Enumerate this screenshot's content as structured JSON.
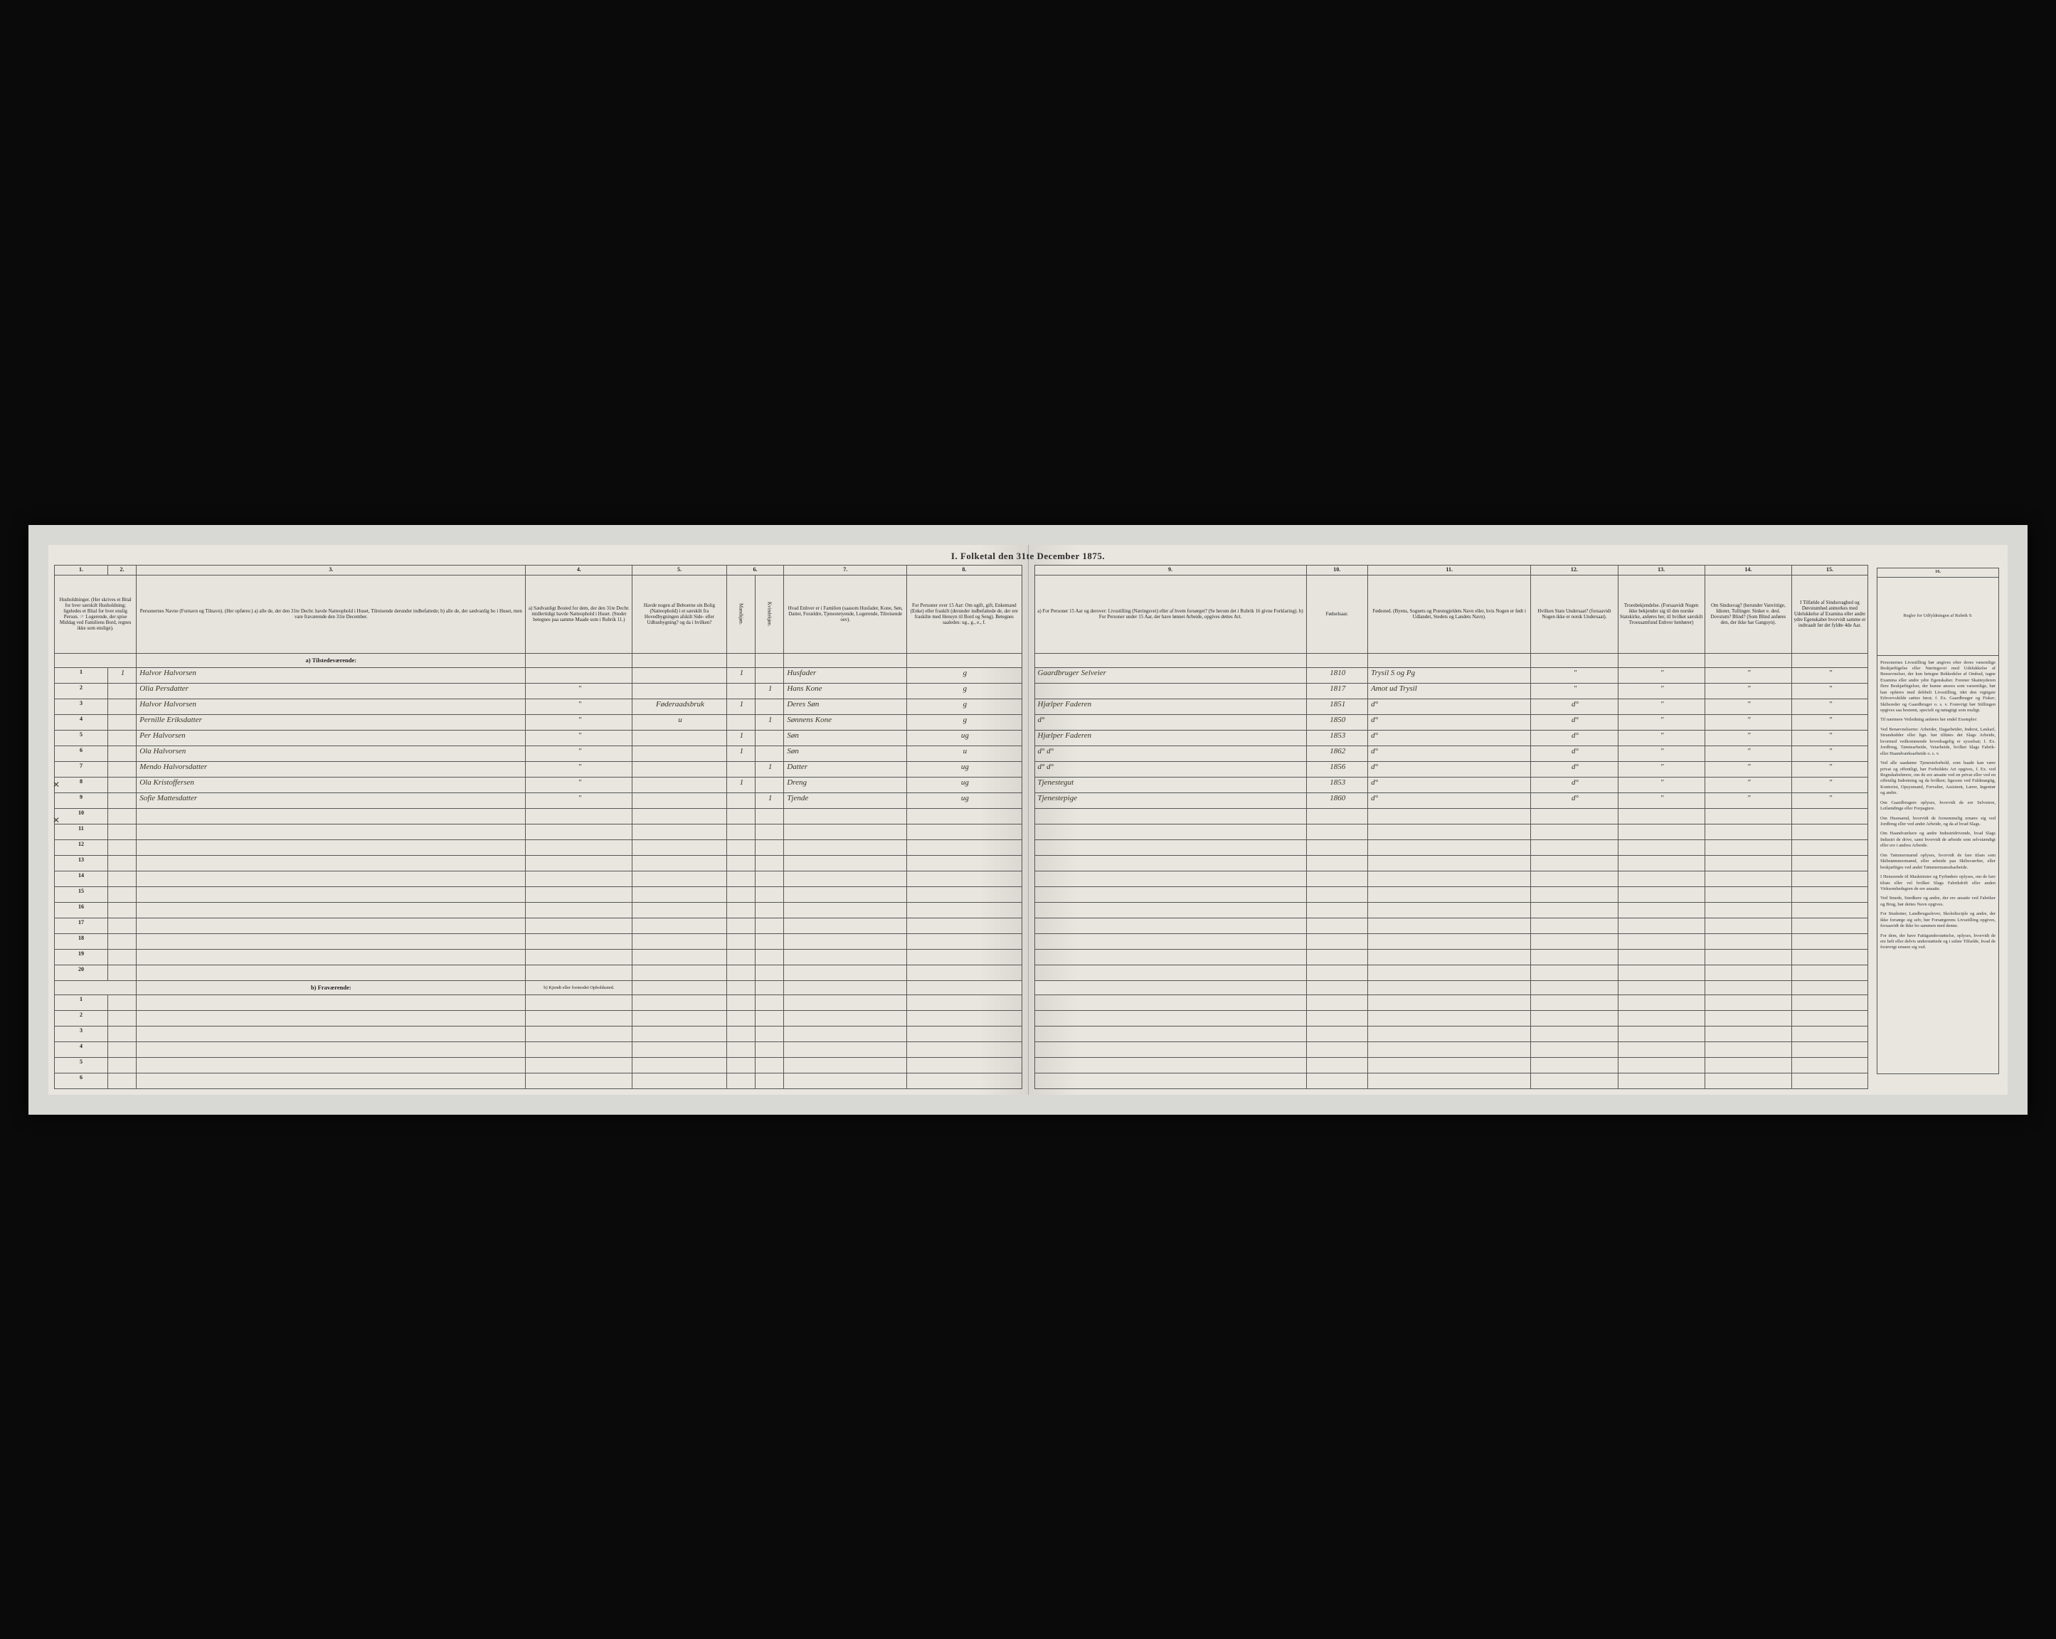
{
  "title": "I.  Folketal  den 31te December 1875.",
  "left_columns": {
    "nums": [
      "1.",
      "2.",
      "3.",
      "4.",
      "5.",
      "6.",
      "7.",
      "8."
    ],
    "headers": [
      "Husholdninger. (Her skrives et Bital for hver særskilt Husholdning; ligeledes et Bital for hver enslig Person. ☞ Logerende, der spise Middag ved Familiens Bord, regnes ikke som enslige).",
      "",
      "Personernes Navne (Fornavn og Tilnavn).\n(Her opføres:)\na) alle de, der den 31te Decbr. havde Natteophold i Huset, Tilreisende derunder indbefattede;\nb) alle de, der sædvanlig bo i Huset, men vare fraværende den 31te December.",
      "a) Sædvanligt Bosted for dem, der den 31te Decbr. midlertidigt havde Natteophold i Huset. (Stedet betegnes paa samme Maade som i Rubrik 11.)",
      "Havde nogen af Beboerne sin Bolig (Natteophold) i et særskilt fra Hovedbygningen afskilt Side- eller Udhusbygning? og da i hvilken?",
      "Kjøn. Her sættes et Bital i vedkommende Rubrik.",
      "Hvad Enhver er i Familien (saasom Husfader, Kone, Søn, Datter, Forældre, Tjenestetyende, Logerende, Tilreisende osv).",
      "For Personer over 15 Aar: Om ugift, gift, Enkemand (Enke) eller fraskilt (derunder indbefattede de, der ere fraskilte med Hensyn til Bord og Seng). Betegnes saaledes: ug., g., e., f."
    ],
    "sub6": [
      "Mandkjøn.",
      "Kvindekjøn."
    ]
  },
  "right_columns": {
    "nums": [
      "9.",
      "10.",
      "11.",
      "12.",
      "13.",
      "14.",
      "15.",
      "16."
    ],
    "headers": [
      "a) For Personer 15 Aar og derover: Livsstilling (Næringsvei) eller af hvem forsørget? (Se herom det i Rubrik 16 givne Forklaring).\nb) For Personer under 15 Aar, der have lønnet Arbeide, opgives dettes Art.",
      "Fødselsaar.",
      "Fødested.\n(Byens, Sognets og Præstegjeldets Navn eller, hvis Nogen er født i Udlandet, Stedets og Landets Navn).",
      "Hvilken Stats Undersaat? (forsaavidt Nogen ikke er norsk Undersaat).",
      "Troesbekjendelse. (Forsaavidt Nogen ikke bekjender sig til den norske Statskirke, anføres her, til hvilket særskilt Troessamfund Enhver henhører)",
      "Om Sindssvag? (herunder Vanvittige, Idioter, Tullinger. Sinker e. desl. Dovstum? Blind? (Som Blind anføres den, der ikke har Gangsyn).",
      "I Tilfælde af Sindssvaghed og Døvstumhed anmerkes med Udelukkelse af Examina eller andre ydre Egenskaber hvorvidt samme er indtraadt før det fyldte 4de Aar.",
      "Regler for Udfyldningen af Rubrik 9."
    ]
  },
  "section_a": "a)  Tilstedeværende:",
  "section_b": "b)  Fraværende:",
  "section_b_col4": "b) Kjendt eller formodet Opholdssted.",
  "rows": [
    {
      "n": "1",
      "hh": "1",
      "name": "Halvor Halvorsen",
      "c4": "",
      "c5": "",
      "m": "1",
      "k": "",
      "fam": "Husfader",
      "civ": "g",
      "occ": "Gaardbruger Selveier",
      "year": "1810",
      "place": "Trysil S og Pg",
      "c12": "\"",
      "c13": "\"",
      "c14": "\"",
      "c15": "\""
    },
    {
      "n": "2",
      "hh": "",
      "name": "Olia Persdatter",
      "c4": "\"",
      "c5": "",
      "m": "",
      "k": "1",
      "fam": "Hans Kone",
      "civ": "g",
      "occ": "",
      "year": "1817",
      "place": "Amot ud Trysil",
      "c12": "\"",
      "c13": "\"",
      "c14": "\"",
      "c15": "\""
    },
    {
      "n": "3",
      "hh": "",
      "name": "Halvor Halvorsen",
      "c4": "\"",
      "c5": "Føderaadsbruk",
      "m": "1",
      "k": "",
      "fam": "Deres Søn",
      "civ": "g",
      "occ": "Hjælper Faderen",
      "year": "1851",
      "place": "d°",
      "c12": "d°",
      "c13": "\"",
      "c14": "\"",
      "c15": "\""
    },
    {
      "n": "4",
      "hh": "",
      "name": "Pernille Eriksdatter",
      "c4": "\"",
      "c5": "u",
      "m": "",
      "k": "1",
      "fam": "Sønnens Kone",
      "civ": "g",
      "occ": "d°",
      "year": "1850",
      "place": "d°",
      "c12": "d°",
      "c13": "\"",
      "c14": "\"",
      "c15": "\""
    },
    {
      "n": "5",
      "hh": "",
      "name": "Per Halvorsen",
      "c4": "\"",
      "c5": "",
      "m": "1",
      "k": "",
      "fam": "Søn",
      "civ": "ug",
      "occ": "Hjælper Faderen",
      "year": "1853",
      "place": "d°",
      "c12": "d°",
      "c13": "\"",
      "c14": "\"",
      "c15": "\""
    },
    {
      "n": "6",
      "hh": "",
      "name": "Ola Halvorsen",
      "c4": "\"",
      "c5": "",
      "m": "1",
      "k": "",
      "fam": "Søn",
      "civ": "u",
      "occ": "d°   d°",
      "year": "1862",
      "place": "d°",
      "c12": "d°",
      "c13": "\"",
      "c14": "\"",
      "c15": "\""
    },
    {
      "n": "7",
      "hh": "",
      "name": "Mendo Halvorsdatter",
      "c4": "\"",
      "c5": "",
      "m": "",
      "k": "1",
      "fam": "Datter",
      "civ": "ug",
      "occ": "d°   d°",
      "year": "1856",
      "place": "d°",
      "c12": "d°",
      "c13": "\"",
      "c14": "\"",
      "c15": "\""
    },
    {
      "n": "8",
      "hh": "",
      "name": "Ola Kristoffersen",
      "c4": "\"",
      "c5": "",
      "m": "1",
      "k": "",
      "fam": "Dreng",
      "civ": "ug",
      "occ": "Tjenestegut",
      "year": "1853",
      "place": "d°",
      "c12": "d°",
      "c13": "\"",
      "c14": "\"",
      "c15": "\""
    },
    {
      "n": "9",
      "hh": "",
      "name": "Sofie Mattesdatter",
      "c4": "\"",
      "c5": "",
      "m": "",
      "k": "1",
      "fam": "Tjende",
      "civ": "ug",
      "occ": "Tjenestepige",
      "year": "1860",
      "place": "d°",
      "c12": "d°",
      "c13": "\"",
      "c14": "\"",
      "c15": "\""
    }
  ],
  "empty_rows_a": [
    "10",
    "11",
    "12",
    "13",
    "14",
    "15",
    "16",
    "17",
    "18",
    "19",
    "20"
  ],
  "empty_rows_b": [
    "1",
    "2",
    "3",
    "4",
    "5",
    "6"
  ],
  "instructions": {
    "title": "Regler for Udfyldningen af Rubrik 9.",
    "paras": [
      "Personernes Livsstilling bør angives efter deres væsentlige Beskjæftigelse eller Næringsvei med Udelukkelse af Bensevnelser, der kun betegne Bekkedelse af Ombud, tagne Examina eller andre ydre Egenskaber. Forener Skatteyderen flere Beskjæftigelser, der kunne ansees som væsentlige, bør han opføres med dobbelt Livsstilling, idet den vigtigste Erhvervskilde sættes først; f. Ex. Gaardbruger og Fisker; Skibsreder og Gaardbruger o. s. v. Forøvrigt bør Stillingen opgives saa bestemt, specielt og nøiagtigt som muligt.",
      "Til nærmere Veiledning anføres her endel Exempler:",
      "Ved Benævnelserne: Arbeider, Dagarbeider, Inderst, Løskarl, Strandsidder eller lign. bør tilføies det Slags Arbeide, hvormed vedkommende hovedsagelig er sysselsat; f. Ex. Jordbrug, Tømtearbeide, Veiarbeide, hvilket Slags Fabrik- eller Haandværksarbeide o. s. v.",
      "Ved alle saadanne Tjenesteforhold, som baade kan være privat og offentligt, bør Forboldets Art opgives, f. Ex. ved Regnskabsførere, om de ere ansatte ved en privat eller ved en offentlig Indretning og da hvilken; ligesom ved Fuldmægtig, Kontorist, Opsysmand, Forvalter, Assistent, Lærer, Ingeniør og andre.",
      "Om Gaardbrugere oplyses, hvorvidt de ere Selveiere, Leilændinge eller Forpagtere.",
      "Om Husmænd, hvorvidt de fornemmelig ernære sig ved Jordbrug eller ved andet Arbeide, og da af hvad Slags.",
      "Om Haandværkere og andre Industridrivende, hvad Slags Industri de drive, samt hvorvidt de arbeide som selvstændigt eller ere i andres Arbeide.",
      "Om Tømmermænd oplyses, hvorvidt de fare tilsøs som Skibstømmermænd, eller arbeide paa Skibsværfter, eller beskjæftiges ved andet Tømmermansdsarbeide.",
      "I Henseende til Maskinister og Fyrbødere oplyses, om de fare tilsøs eller vel hvilket Slags Fabrikdrift eller anden Virksomhedsgren de ere ansatte.",
      "Ved Smede, Snedkere og andre, der ere ansatte ved Fabriker og Brug, bør dettes Navn opgives.",
      "For Studenter, Landbrugselever, Skoledisciple og andre, der ikke forsørge sig selv, bør Forsørgerens Livsstilling opgives, forsaavidt de ikke bo sammen med denne.",
      "For dem, der have Fattigunderstøttelse, oplyses, hvorvidt de ere helt eller delvis understøttede og i sidste Tilfælde, hvad de forøvrigt ernære sig ved."
    ]
  },
  "left_widths": {
    "c1": 26,
    "c2": 14,
    "c3": 190,
    "c4": 52,
    "c5": 46,
    "c6a": 14,
    "c6b": 14,
    "c7": 60,
    "c8": 56
  },
  "right_widths": {
    "c9": 150,
    "c10": 34,
    "c11": 90,
    "c12": 48,
    "c13": 48,
    "c14": 48,
    "c15": 42
  },
  "marks": [
    "✕",
    "✕"
  ]
}
